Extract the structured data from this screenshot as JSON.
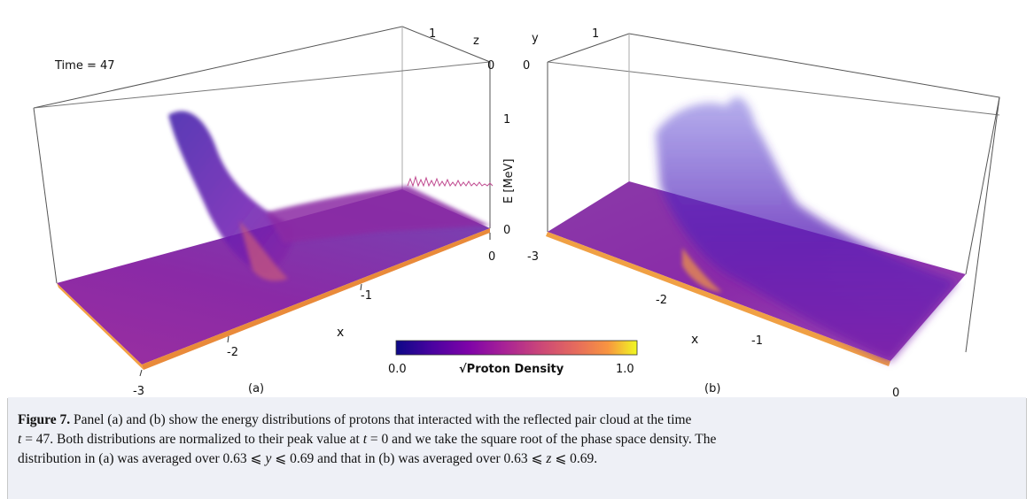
{
  "figure": {
    "time_label": "Time = 47",
    "panel_a_label": "(a)",
    "panel_b_label": "(b)",
    "axis_z_label": "z",
    "axis_y_label": "y",
    "axis_x_label": "x",
    "axis_e_label": "E [MeV]",
    "panel_a_x_ticks": [
      "-3",
      "-2",
      "-1",
      "0"
    ],
    "panel_b_x_ticks": [
      "-3",
      "-2",
      "-1",
      "0"
    ],
    "e_ticks": [
      "0",
      "1"
    ],
    "depth_tick_a": "1",
    "depth_tick_b": "1",
    "corner_a": "0",
    "corner_b": "0",
    "colorbar": {
      "title": "√Proton Density",
      "min_label": "0.0",
      "max_label": "1.0",
      "stops": [
        "#0d0887",
        "#5a02a3",
        "#8f0da4",
        "#b93289",
        "#db5c68",
        "#f48849",
        "#febd2a",
        "#f0f921"
      ]
    }
  },
  "caption": {
    "label": "Figure 7.",
    "line1": "Panel (a) and (b) show the energy distributions of protons that interacted with the reflected pair cloud at the time",
    "line2_var": "t",
    "line2_eq": " = 47. Both distributions are normalized to their peak value at ",
    "line2_var2": "t",
    "line2_rest": " = 0 and we take the square root of the phase space density. The",
    "line3_start": "distribution in (a) was averaged over 0.63 ⩽ ",
    "line3_var_y": "y",
    "line3_mid": " ⩽ 0.69 and that in (b) was averaged over 0.63 ⩽ ",
    "line3_var_z": "z",
    "line3_end": " ⩽ 0.69."
  }
}
